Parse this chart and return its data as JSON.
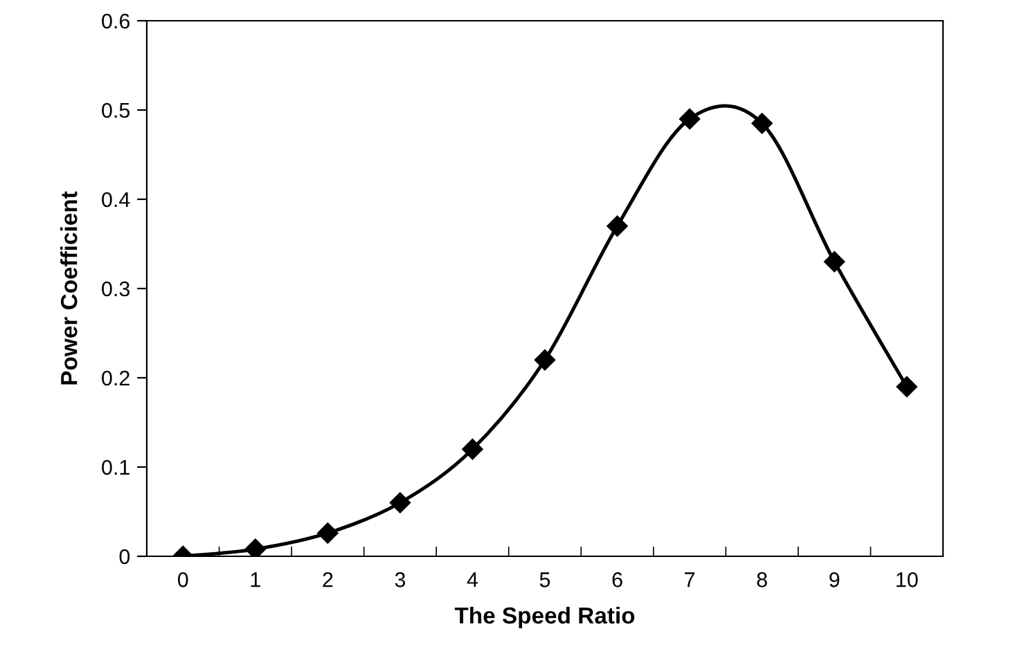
{
  "chart_data": {
    "type": "line",
    "xlabel": "The Speed Ratio",
    "ylabel": "Power Coefficient",
    "categories": [
      "0",
      "1",
      "2",
      "3",
      "4",
      "5",
      "6",
      "7",
      "8",
      "9",
      "10"
    ],
    "series": [
      {
        "color": "#000000",
        "values": [
          0,
          0.008,
          0.026,
          0.06,
          0.12,
          0.22,
          0.37,
          0.49,
          0.485,
          0.33,
          0.19
        ]
      }
    ],
    "ylim": [
      0,
      0.6
    ],
    "yticks": [
      0,
      0.1,
      0.2,
      0.3,
      0.4,
      0.5,
      0.6
    ],
    "marker": "diamond",
    "line_style": "solid",
    "grid": false
  }
}
